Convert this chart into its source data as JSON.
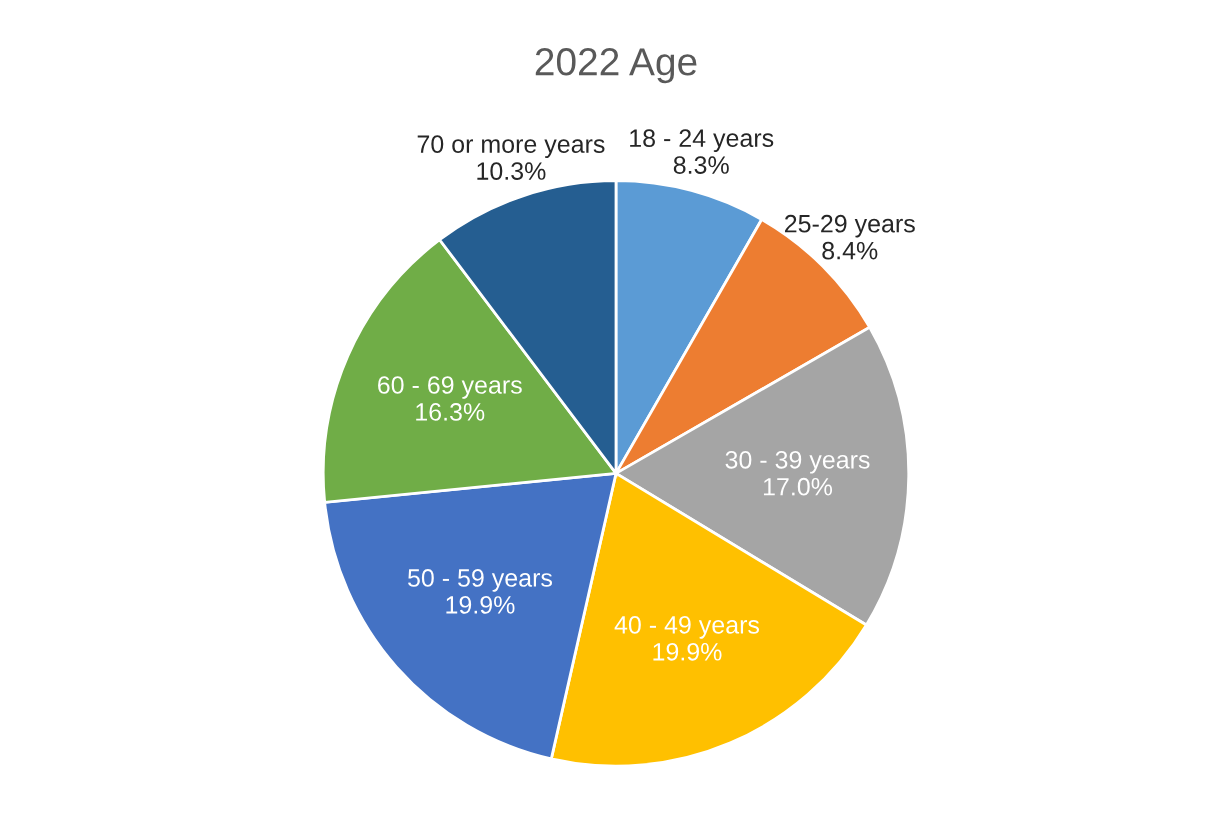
{
  "chart_data": {
    "type": "pie",
    "title": "2022 Age",
    "categories": [
      "18 - 24 years",
      "25-29 years",
      "30 - 39 years",
      "40 - 49 years",
      "50 - 59 years",
      "60 - 69 years",
      "70 or more years"
    ],
    "values": [
      8.3,
      8.4,
      17.0,
      19.9,
      19.9,
      16.3,
      10.3
    ],
    "value_labels": [
      "8.3%",
      "8.4%",
      "17.0%",
      "19.9%",
      "19.9%",
      "16.3%",
      "10.3%"
    ],
    "colors": [
      "#5b9bd5",
      "#ed7d31",
      "#a5a5a5",
      "#ffc000",
      "#4472c4",
      "#70ad47",
      "#255e91"
    ],
    "legend": false
  }
}
